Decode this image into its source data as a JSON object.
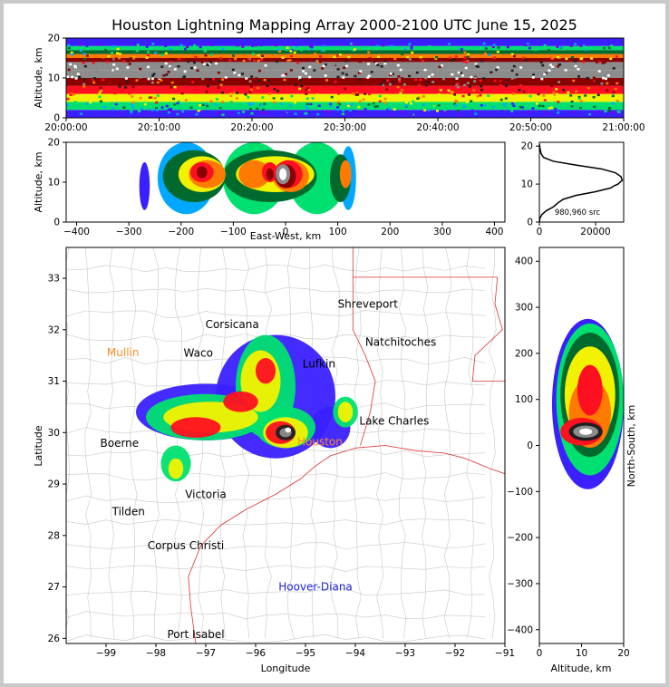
{
  "title": "Houston Lightning Mapping Array 2000-2100 UTC June 15, 2025",
  "colors": {
    "frame": "#c9c9c9",
    "state_border": "#e03030",
    "county": "#c8c8c8",
    "city_label": "#000000",
    "orange_city": "#ff8c28",
    "blue_city": "#2020dd",
    "profile_line": "#000000"
  },
  "colormap": [
    "#7a00e6",
    "#3a20ff",
    "#00a8ff",
    "#00e070",
    "#006a2e",
    "#f2f200",
    "#ff7a00",
    "#ff1020",
    "#8a0000",
    "#202020",
    "#8c8c8c",
    "#ffffff"
  ],
  "chart_data": [
    {
      "id": "time_height",
      "type": "heatmap",
      "ylabel": "Altitude, km",
      "ylim": [
        0,
        20
      ],
      "yticks": [
        "0",
        "10",
        "20"
      ],
      "xticks": [
        "20:00:00",
        "20:10:00",
        "20:20:00",
        "20:30:00",
        "20:40:00",
        "20:50:00",
        "21:00:00"
      ],
      "bands": [
        {
          "from": 0,
          "to": 2,
          "level": 1
        },
        {
          "from": 2,
          "to": 4,
          "level": 3
        },
        {
          "from": 4,
          "to": 6,
          "level": 5
        },
        {
          "from": 6,
          "to": 8,
          "level": 7
        },
        {
          "from": 8,
          "to": 10,
          "level": 8
        },
        {
          "from": 10,
          "to": 12,
          "level": 10
        },
        {
          "from": 12,
          "to": 14,
          "level": 10
        },
        {
          "from": 14,
          "to": 15,
          "level": 8
        },
        {
          "from": 15,
          "to": 16,
          "level": 6
        },
        {
          "from": 16,
          "to": 17,
          "level": 4
        },
        {
          "from": 17,
          "to": 18,
          "level": 3
        },
        {
          "from": 18,
          "to": 20,
          "level": 1
        }
      ]
    },
    {
      "id": "east_west_height",
      "type": "heatmap",
      "xlabel": "East-West, km",
      "ylabel": "Altitude, km",
      "xlim": [
        -420,
        420
      ],
      "ylim": [
        0,
        20
      ],
      "xticks": [
        "−400",
        "−300",
        "−200",
        "−100",
        "0",
        "100",
        "200",
        "300",
        "400"
      ],
      "yticks": [
        "0",
        "10",
        "20"
      ],
      "cells": [
        {
          "x": -270,
          "z": 9,
          "w": 20,
          "h": 12,
          "level": 1
        },
        {
          "x": -190,
          "z": 11,
          "w": 110,
          "h": 18,
          "level": 2
        },
        {
          "x": -60,
          "z": 11,
          "w": 120,
          "h": 18,
          "level": 3
        },
        {
          "x": 60,
          "z": 11,
          "w": 110,
          "h": 18,
          "level": 3
        },
        {
          "x": 120,
          "z": 11,
          "w": 30,
          "h": 16,
          "level": 2
        },
        {
          "x": -175,
          "z": 11.5,
          "w": 120,
          "h": 13,
          "level": 4
        },
        {
          "x": -30,
          "z": 11.5,
          "w": 180,
          "h": 13,
          "level": 4
        },
        {
          "x": 105,
          "z": 11,
          "w": 40,
          "h": 12,
          "level": 4
        },
        {
          "x": -160,
          "z": 12,
          "w": 90,
          "h": 9,
          "level": 5
        },
        {
          "x": -20,
          "z": 12,
          "w": 150,
          "h": 9,
          "level": 5
        },
        {
          "x": -150,
          "z": 12,
          "w": 70,
          "h": 7,
          "level": 6
        },
        {
          "x": -60,
          "z": 12,
          "w": 60,
          "h": 7,
          "level": 6
        },
        {
          "x": 10,
          "z": 11.5,
          "w": 70,
          "h": 8,
          "level": 6
        },
        {
          "x": 115,
          "z": 12,
          "w": 22,
          "h": 7,
          "level": 6
        },
        {
          "x": -160,
          "z": 12.5,
          "w": 45,
          "h": 5,
          "level": 7
        },
        {
          "x": -30,
          "z": 12.5,
          "w": 30,
          "h": 5,
          "level": 7
        },
        {
          "x": 5,
          "z": 12,
          "w": 55,
          "h": 7,
          "level": 7
        },
        {
          "x": -160,
          "z": 12.5,
          "w": 20,
          "h": 3,
          "level": 8
        },
        {
          "x": -30,
          "z": 12,
          "w": 14,
          "h": 3,
          "level": 8
        },
        {
          "x": 0,
          "z": 11.5,
          "w": 40,
          "h": 6,
          "level": 8
        },
        {
          "x": -5,
          "z": 12,
          "w": 28,
          "h": 5,
          "level": 10
        },
        {
          "x": -5,
          "z": 12,
          "w": 14,
          "h": 3,
          "level": 11
        }
      ]
    },
    {
      "id": "altitude_histogram",
      "type": "line",
      "ylim": [
        0,
        21
      ],
      "xlim": [
        0,
        30000
      ],
      "xticks": [
        "0",
        "20000"
      ],
      "yticks": [
        "0",
        "10",
        "20"
      ],
      "annotation": "980,960 src",
      "x": [
        0,
        200,
        900,
        2500,
        5000,
        6500,
        8500,
        13000,
        20000,
        25500,
        26500,
        28000,
        29500,
        29000,
        27000,
        22000,
        13000,
        5000,
        1500,
        600,
        200,
        0
      ],
      "y": [
        0,
        1,
        2,
        3,
        4,
        5,
        6,
        7,
        8,
        9,
        9.5,
        10,
        11,
        12,
        13,
        14,
        15,
        16,
        17,
        18,
        19.5,
        20.5
      ]
    },
    {
      "id": "map",
      "type": "heatmap",
      "xlabel": "Longitude",
      "ylabel": "Latitude",
      "xlim": [
        -99.8,
        -91
      ],
      "ylim": [
        25.9,
        33.6
      ],
      "xticks": [
        "−99",
        "−98",
        "−97",
        "−96",
        "−95",
        "−94",
        "−93",
        "−92",
        "−91"
      ],
      "yticks": [
        "26",
        "27",
        "28",
        "29",
        "30",
        "31",
        "32",
        "33"
      ],
      "cells": [
        {
          "lon": -97.0,
          "lat": 30.4,
          "rx": 1.4,
          "ry": 0.55,
          "level": 1
        },
        {
          "lon": -95.6,
          "lat": 30.7,
          "rx": 1.2,
          "ry": 1.2,
          "level": 1
        },
        {
          "lon": -94.5,
          "lat": 30.1,
          "rx": 0.4,
          "ry": 0.4,
          "level": 1
        },
        {
          "lon": -97.0,
          "lat": 30.3,
          "rx": 1.2,
          "ry": 0.45,
          "level": 3
        },
        {
          "lon": -95.8,
          "lat": 30.9,
          "rx": 0.6,
          "ry": 1.0,
          "level": 3
        },
        {
          "lon": -95.4,
          "lat": 30.1,
          "rx": 0.6,
          "ry": 0.4,
          "level": 3
        },
        {
          "lon": -94.2,
          "lat": 30.4,
          "rx": 0.25,
          "ry": 0.3,
          "level": 3
        },
        {
          "lon": -97.6,
          "lat": 29.4,
          "rx": 0.3,
          "ry": 0.35,
          "level": 3
        },
        {
          "lon": -96.9,
          "lat": 30.3,
          "rx": 0.95,
          "ry": 0.3,
          "level": 5
        },
        {
          "lon": -95.9,
          "lat": 31.0,
          "rx": 0.4,
          "ry": 0.6,
          "level": 5
        },
        {
          "lon": -95.4,
          "lat": 30.0,
          "rx": 0.45,
          "ry": 0.3,
          "level": 5
        },
        {
          "lon": -94.2,
          "lat": 30.4,
          "rx": 0.15,
          "ry": 0.2,
          "level": 5
        },
        {
          "lon": -97.6,
          "lat": 29.3,
          "rx": 0.15,
          "ry": 0.2,
          "level": 5
        },
        {
          "lon": -97.2,
          "lat": 30.1,
          "rx": 0.5,
          "ry": 0.2,
          "level": 7
        },
        {
          "lon": -96.3,
          "lat": 30.6,
          "rx": 0.35,
          "ry": 0.2,
          "level": 7
        },
        {
          "lon": -95.5,
          "lat": 30.0,
          "rx": 0.3,
          "ry": 0.22,
          "level": 7
        },
        {
          "lon": -95.8,
          "lat": 31.2,
          "rx": 0.2,
          "ry": 0.25,
          "level": 7
        },
        {
          "lon": -95.4,
          "lat": 30.0,
          "rx": 0.2,
          "ry": 0.15,
          "level": 9
        },
        {
          "lon": -95.4,
          "lat": 30.0,
          "rx": 0.12,
          "ry": 0.09,
          "level": 10
        },
        {
          "lon": -95.35,
          "lat": 30.05,
          "rx": 0.06,
          "ry": 0.05,
          "level": 11
        }
      ]
    },
    {
      "id": "north_south_height",
      "type": "heatmap",
      "xlabel": "Altitude, km",
      "ylabel": "North-South, km",
      "xlim": [
        0,
        20
      ],
      "ylim": [
        -430,
        430
      ],
      "xticks": [
        "0",
        "10",
        "20"
      ],
      "yticks": [
        "−400",
        "−300",
        "−200",
        "−100",
        "0",
        "100",
        "200",
        "300",
        "400"
      ],
      "cells": [
        {
          "z": 12,
          "y": 90,
          "w": 18,
          "h": 370,
          "level": 1
        },
        {
          "z": 12,
          "y": 100,
          "w": 16,
          "h": 330,
          "level": 3
        },
        {
          "z": 12,
          "y": 110,
          "w": 14,
          "h": 270,
          "level": 4
        },
        {
          "z": 12,
          "y": 110,
          "w": 12,
          "h": 210,
          "level": 5
        },
        {
          "z": 12,
          "y": 70,
          "w": 10,
          "h": 150,
          "level": 6
        },
        {
          "z": 12,
          "y": 120,
          "w": 6,
          "h": 110,
          "level": 7
        },
        {
          "z": 10,
          "y": 30,
          "w": 10,
          "h": 60,
          "level": 7
        },
        {
          "z": 11,
          "y": 30,
          "w": 8,
          "h": 40,
          "level": 9
        },
        {
          "z": 11,
          "y": 30,
          "w": 6,
          "h": 26,
          "level": 10
        },
        {
          "z": 11,
          "y": 30,
          "w": 3,
          "h": 14,
          "level": 11
        }
      ]
    }
  ],
  "cities": [
    {
      "name": "Shreveport",
      "lon": -93.75,
      "lat": 32.5,
      "color": "black"
    },
    {
      "name": "Corsicana",
      "lon": -96.47,
      "lat": 32.1,
      "color": "black"
    },
    {
      "name": "Mullin",
      "lon": -98.66,
      "lat": 31.56,
      "color": "orange"
    },
    {
      "name": "Waco",
      "lon": -97.15,
      "lat": 31.55,
      "color": "black"
    },
    {
      "name": "Natchitoches",
      "lon": -93.09,
      "lat": 31.76,
      "color": "black"
    },
    {
      "name": "Lufkin",
      "lon": -94.73,
      "lat": 31.34,
      "color": "black"
    },
    {
      "name": "Lake Charles",
      "lon": -93.22,
      "lat": 30.23,
      "color": "black"
    },
    {
      "name": "Boerne",
      "lon": -98.73,
      "lat": 29.79,
      "color": "black"
    },
    {
      "name": "Houston",
      "lon": -94.71,
      "lat": 29.82,
      "color": "orange"
    },
    {
      "name": "Victoria",
      "lon": -97.0,
      "lat": 28.8,
      "color": "black"
    },
    {
      "name": "Tilden",
      "lon": -98.55,
      "lat": 28.46,
      "color": "black"
    },
    {
      "name": "Corpus Christi",
      "lon": -97.4,
      "lat": 27.8,
      "color": "black"
    },
    {
      "name": "Hoover-Diana",
      "lon": -94.8,
      "lat": 27.0,
      "color": "blue"
    },
    {
      "name": "Port Isabel",
      "lon": -97.2,
      "lat": 26.08,
      "color": "black"
    }
  ]
}
